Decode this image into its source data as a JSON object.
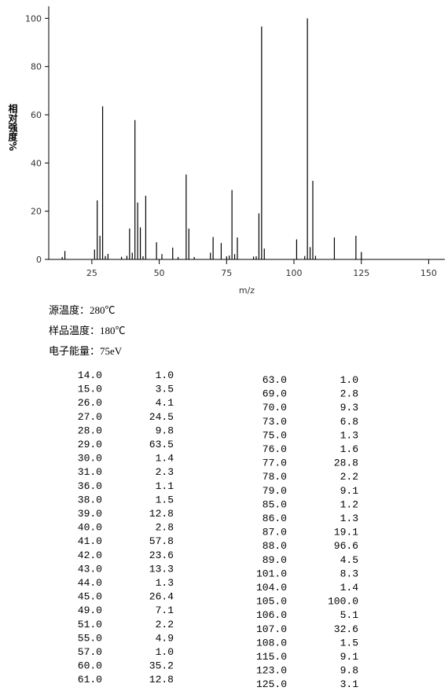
{
  "chart_data": {
    "type": "stem",
    "x_label": "m/z",
    "y_label": "相对强度%",
    "color": "#000000",
    "xlim": [
      9,
      156
    ],
    "ylim": [
      0,
      105
    ],
    "xticks": [
      25,
      50,
      75,
      100,
      125,
      150
    ],
    "yticks": [
      0,
      20,
      40,
      60,
      80,
      100
    ],
    "x": [
      14,
      15,
      26,
      27,
      28,
      29,
      30,
      31,
      36,
      38,
      39,
      40,
      41,
      42,
      43,
      44,
      45,
      49,
      51,
      55,
      57,
      60,
      61,
      63,
      69,
      70,
      73,
      75,
      76,
      77,
      78,
      79,
      85,
      86,
      87,
      88,
      89,
      101,
      104,
      105,
      106,
      107,
      108,
      115,
      123,
      125
    ],
    "values": [
      1.0,
      3.5,
      4.1,
      24.5,
      9.8,
      63.5,
      1.4,
      2.3,
      1.1,
      1.5,
      12.8,
      2.8,
      57.8,
      23.6,
      13.3,
      1.3,
      26.4,
      7.1,
      2.2,
      4.9,
      1.0,
      35.2,
      12.8,
      1.0,
      2.8,
      9.3,
      6.8,
      1.3,
      1.6,
      28.8,
      2.2,
      9.1,
      1.2,
      1.3,
      19.1,
      96.6,
      4.5,
      8.3,
      1.4,
      100.0,
      5.1,
      32.6,
      1.5,
      9.1,
      9.8,
      3.1
    ]
  },
  "info": [
    "源温度：280℃",
    "样品温度：180℃",
    "电子能量：75eV"
  ],
  "table": {
    "left": [
      [
        "14.0",
        "1.0"
      ],
      [
        "15.0",
        "3.5"
      ],
      [
        "26.0",
        "4.1"
      ],
      [
        "27.0",
        "24.5"
      ],
      [
        "28.0",
        "9.8"
      ],
      [
        "29.0",
        "63.5"
      ],
      [
        "30.0",
        "1.4"
      ],
      [
        "31.0",
        "2.3"
      ],
      [
        "36.0",
        "1.1"
      ],
      [
        "38.0",
        "1.5"
      ],
      [
        "39.0",
        "12.8"
      ],
      [
        "40.0",
        "2.8"
      ],
      [
        "41.0",
        "57.8"
      ],
      [
        "42.0",
        "23.6"
      ],
      [
        "43.0",
        "13.3"
      ],
      [
        "44.0",
        "1.3"
      ],
      [
        "45.0",
        "26.4"
      ],
      [
        "49.0",
        "7.1"
      ],
      [
        "51.0",
        "2.2"
      ],
      [
        "55.0",
        "4.9"
      ],
      [
        "57.0",
        "1.0"
      ],
      [
        "60.0",
        "35.2"
      ],
      [
        "61.0",
        "12.8"
      ]
    ],
    "right": [
      [
        "63.0",
        "1.0"
      ],
      [
        "69.0",
        "2.8"
      ],
      [
        "70.0",
        "9.3"
      ],
      [
        "73.0",
        "6.8"
      ],
      [
        "75.0",
        "1.3"
      ],
      [
        "76.0",
        "1.6"
      ],
      [
        "77.0",
        "28.8"
      ],
      [
        "78.0",
        "2.2"
      ],
      [
        "79.0",
        "9.1"
      ],
      [
        "85.0",
        "1.2"
      ],
      [
        "86.0",
        "1.3"
      ],
      [
        "87.0",
        "19.1"
      ],
      [
        "88.0",
        "96.6"
      ],
      [
        "89.0",
        "4.5"
      ],
      [
        "101.0",
        "8.3"
      ],
      [
        "104.0",
        "1.4"
      ],
      [
        "105.0",
        "100.0"
      ],
      [
        "106.0",
        "5.1"
      ],
      [
        "107.0",
        "32.6"
      ],
      [
        "108.0",
        "1.5"
      ],
      [
        "115.0",
        "9.1"
      ],
      [
        "123.0",
        "9.8"
      ],
      [
        "125.0",
        "3.1"
      ]
    ]
  }
}
